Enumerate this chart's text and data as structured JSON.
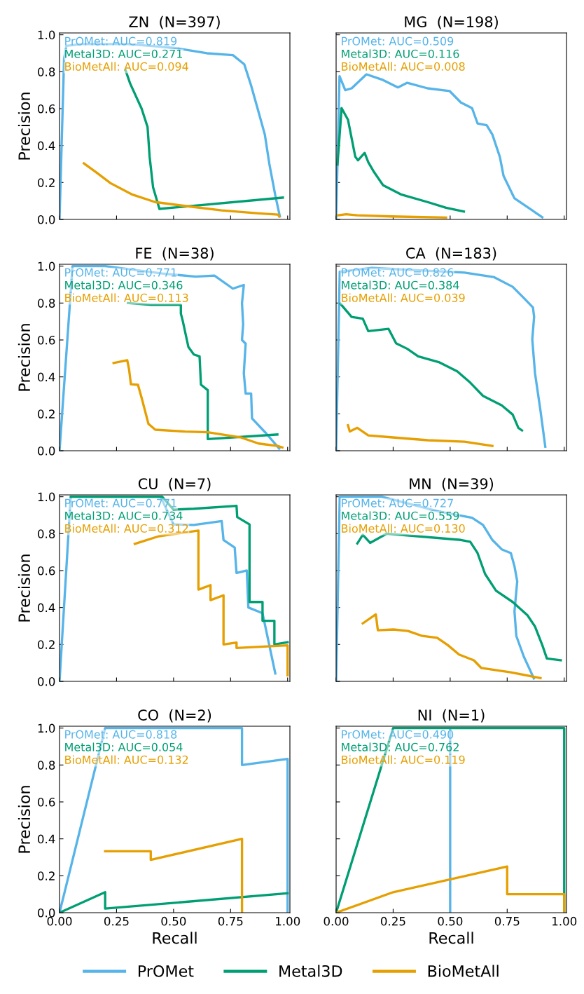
{
  "chart_data": [
    {
      "type": "line",
      "title": "ZN  (N=397)",
      "ylabel": "Precision",
      "xlim": [
        0,
        1.01
      ],
      "ylim": [
        0,
        1.01
      ],
      "xticks": [
        {
          "value": 0,
          "label": null
        },
        {
          "value": 0.25,
          "label": null
        },
        {
          "value": 0.5,
          "label": null
        },
        {
          "value": 0.75,
          "label": null
        },
        {
          "value": 1.0,
          "label": null
        }
      ],
      "yticks": [
        {
          "value": 0,
          "label": "0.0"
        },
        {
          "value": 0.2,
          "label": "0.2"
        },
        {
          "value": 0.4,
          "label": "0.4"
        },
        {
          "value": 0.6,
          "label": "0.6"
        },
        {
          "value": 0.8,
          "label": "0.8"
        },
        {
          "value": 1.0,
          "label": "1.0"
        }
      ],
      "tick_labels": "y",
      "grid": false,
      "legend": "bottom",
      "annotations": [
        "PrOMet: AUC=0.819",
        "Metal3D: AUC=0.271",
        "BioMetAll: AUC=0.094"
      ],
      "series": [
        {
          "name": "PrOMet",
          "color": "#56b4e9",
          "x": [
            0,
            0.02,
            0.03,
            0.1,
            0.3,
            0.5,
            0.646,
            0.76,
            0.81,
            0.84,
            0.873,
            0.9,
            0.92,
            0.946,
            0.966
          ],
          "values": [
            0,
            0.87,
            0.94,
            0.95,
            0.95,
            0.93,
            0.9,
            0.89,
            0.84,
            0.725,
            0.58,
            0.46,
            0.3,
            0.13,
            0.016
          ]
        },
        {
          "name": "Metal3D",
          "color": "#009e73",
          "x": [
            0.289,
            0.31,
            0.36,
            0.386,
            0.395,
            0.41,
            0.438,
            0.979
          ],
          "values": [
            0.81,
            0.735,
            0.6,
            0.5,
            0.34,
            0.175,
            0.057,
            0.118
          ]
        },
        {
          "name": "BioMetAll",
          "color": "#e69f00",
          "x": [
            0.107,
            0.159,
            0.224,
            0.32,
            0.419,
            0.549,
            0.711,
            0.873,
            0.958,
            0.963
          ],
          "values": [
            0.303,
            0.257,
            0.196,
            0.134,
            0.094,
            0.073,
            0.049,
            0.033,
            0.026,
            0.016
          ]
        }
      ]
    },
    {
      "type": "line",
      "title": "MG  (N=198)",
      "xlim": [
        0,
        1.01
      ],
      "ylim": [
        0,
        1.01
      ],
      "xticks": [
        {
          "value": 0,
          "label": null
        },
        {
          "value": 0.25,
          "label": null
        },
        {
          "value": 0.5,
          "label": null
        },
        {
          "value": 0.75,
          "label": null
        },
        {
          "value": 1.0,
          "label": null
        }
      ],
      "yticks": [
        {
          "value": 0,
          "label": null
        },
        {
          "value": 0.2,
          "label": null
        },
        {
          "value": 0.4,
          "label": null
        },
        {
          "value": 0.6,
          "label": null
        },
        {
          "value": 0.8,
          "label": null
        },
        {
          "value": 1.0,
          "label": null
        }
      ],
      "tick_labels": false,
      "grid": false,
      "annotations": [
        "PrOMet: AUC=0.509",
        "Metal3D: AUC=0.116",
        "BioMetAll: AUC=0.008"
      ],
      "series": [
        {
          "name": "PrOMet",
          "color": "#56b4e9",
          "x": [
            0,
            0.015,
            0.04,
            0.068,
            0.133,
            0.206,
            0.271,
            0.312,
            0.401,
            0.498,
            0.547,
            0.596,
            0.62,
            0.66,
            0.685,
            0.718,
            0.734,
            0.782,
            0.904
          ],
          "values": [
            0,
            0.776,
            0.7,
            0.71,
            0.786,
            0.755,
            0.715,
            0.74,
            0.71,
            0.695,
            0.633,
            0.603,
            0.52,
            0.51,
            0.46,
            0.338,
            0.236,
            0.114,
            0.012
          ]
        },
        {
          "name": "Metal3D",
          "color": "#009e73",
          "x": [
            0.006,
            0.024,
            0.052,
            0.068,
            0.084,
            0.096,
            0.125,
            0.141,
            0.166,
            0.206,
            0.287,
            0.401,
            0.482,
            0.56
          ],
          "values": [
            0.297,
            0.603,
            0.54,
            0.44,
            0.34,
            0.32,
            0.36,
            0.31,
            0.257,
            0.185,
            0.134,
            0.094,
            0.063,
            0.043
          ]
        },
        {
          "name": "BioMetAll",
          "color": "#e69f00",
          "x": [
            0.008,
            0.044,
            0.093,
            0.239,
            0.482
          ],
          "values": [
            0.022,
            0.028,
            0.022,
            0.016,
            0.01
          ]
        }
      ]
    },
    {
      "type": "line",
      "title": "FE  (N=38)",
      "ylabel": "Precision",
      "xlim": [
        0,
        1.01
      ],
      "ylim": [
        0,
        1.01
      ],
      "xticks": [
        {
          "value": 0,
          "label": null
        },
        {
          "value": 0.25,
          "label": null
        },
        {
          "value": 0.5,
          "label": null
        },
        {
          "value": 0.75,
          "label": null
        },
        {
          "value": 1.0,
          "label": null
        }
      ],
      "yticks": [
        {
          "value": 0,
          "label": "0.0"
        },
        {
          "value": 0.2,
          "label": "0.2"
        },
        {
          "value": 0.4,
          "label": "0.4"
        },
        {
          "value": 0.6,
          "label": "0.6"
        },
        {
          "value": 0.8,
          "label": "0.8"
        },
        {
          "value": 1.0,
          "label": "1.0"
        }
      ],
      "tick_labels": "y",
      "grid": false,
      "annotations": [
        "PrOMet: AUC=0.771",
        "Metal3D: AUC=0.346",
        "BioMetAll: AUC=0.113"
      ],
      "series": [
        {
          "name": "PrOMet",
          "color": "#56b4e9",
          "x": [
            0,
            0.057,
            0.2,
            0.45,
            0.597,
            0.679,
            0.76,
            0.808,
            0.8,
            0.805,
            0.8,
            0.816,
            0.808,
            0.816,
            0.84,
            0.844,
            0.906,
            0.963
          ],
          "values": [
            0,
            1.0,
            1.0,
            0.96,
            0.943,
            0.949,
            0.878,
            0.898,
            0.8,
            0.684,
            0.6,
            0.58,
            0.42,
            0.31,
            0.31,
            0.175,
            0.094,
            0.012
          ]
        },
        {
          "name": "Metal3D",
          "color": "#009e73",
          "x": [
            0.3,
            0.4,
            0.532,
            0.532,
            0.54,
            0.565,
            0.589,
            0.614,
            0.62,
            0.65,
            0.65,
            0.955
          ],
          "values": [
            0.8,
            0.79,
            0.79,
            0.743,
            0.705,
            0.562,
            0.521,
            0.511,
            0.358,
            0.328,
            0.063,
            0.088
          ]
        },
        {
          "name": "BioMetAll",
          "color": "#e69f00",
          "x": [
            0.237,
            0.297,
            0.305,
            0.313,
            0.344,
            0.362,
            0.39,
            0.42,
            0.549,
            0.65,
            0.792,
            0.873,
            0.955,
            0.977
          ],
          "values": [
            0.475,
            0.49,
            0.44,
            0.36,
            0.357,
            0.277,
            0.145,
            0.114,
            0.104,
            0.1,
            0.073,
            0.039,
            0.026,
            0.018
          ]
        }
      ]
    },
    {
      "type": "line",
      "title": "CA  (N=183)",
      "xlim": [
        0,
        1.01
      ],
      "ylim": [
        0,
        1.01
      ],
      "xticks": [
        {
          "value": 0,
          "label": null
        },
        {
          "value": 0.25,
          "label": null
        },
        {
          "value": 0.5,
          "label": null
        },
        {
          "value": 0.75,
          "label": null
        },
        {
          "value": 1.0,
          "label": null
        }
      ],
      "yticks": [
        {
          "value": 0,
          "label": null
        },
        {
          "value": 0.2,
          "label": null
        },
        {
          "value": 0.4,
          "label": null
        },
        {
          "value": 0.6,
          "label": null
        },
        {
          "value": 0.8,
          "label": null
        },
        {
          "value": 1.0,
          "label": null
        }
      ],
      "tick_labels": false,
      "grid": false,
      "annotations": [
        "PrOMet: AUC=0.826",
        "Metal3D: AUC=0.384",
        "BioMetAll: AUC=0.039"
      ],
      "series": [
        {
          "name": "PrOMet",
          "color": "#56b4e9",
          "x": [
            0,
            0.016,
            0.157,
            0.563,
            0.693,
            0.774,
            0.823,
            0.863,
            0.868,
            0.86,
            0.872,
            0.896,
            0.917
          ],
          "values": [
            0,
            0.97,
            0.99,
            0.965,
            0.94,
            0.888,
            0.827,
            0.776,
            0.725,
            0.603,
            0.42,
            0.216,
            0.022
          ]
        },
        {
          "name": "Metal3D",
          "color": "#009e73",
          "x": [
            0.019,
            0.068,
            0.117,
            0.141,
            0.23,
            0.263,
            0.312,
            0.36,
            0.45,
            0.531,
            0.588,
            0.644,
            0.726,
            0.774,
            0.799,
            0.815
          ],
          "values": [
            0.796,
            0.725,
            0.715,
            0.648,
            0.66,
            0.582,
            0.552,
            0.511,
            0.48,
            0.43,
            0.369,
            0.297,
            0.246,
            0.196,
            0.124,
            0.11
          ]
        },
        {
          "name": "BioMetAll",
          "color": "#e69f00",
          "x": [
            0.052,
            0.06,
            0.093,
            0.141,
            0.239,
            0.401,
            0.563,
            0.685
          ],
          "values": [
            0.138,
            0.104,
            0.124,
            0.083,
            0.073,
            0.057,
            0.049,
            0.026
          ]
        }
      ]
    },
    {
      "type": "line",
      "title": "CU  (N=7)",
      "ylabel": "Precision",
      "xlim": [
        0,
        1.01
      ],
      "ylim": [
        0,
        1.01
      ],
      "xticks": [
        {
          "value": 0,
          "label": null
        },
        {
          "value": 0.25,
          "label": null
        },
        {
          "value": 0.5,
          "label": null
        },
        {
          "value": 0.75,
          "label": null
        },
        {
          "value": 1.0,
          "label": null
        }
      ],
      "yticks": [
        {
          "value": 0,
          "label": "0.0"
        },
        {
          "value": 0.2,
          "label": "0.2"
        },
        {
          "value": 0.4,
          "label": "0.4"
        },
        {
          "value": 0.6,
          "label": "0.6"
        },
        {
          "value": 0.8,
          "label": "0.8"
        },
        {
          "value": 1.0,
          "label": "1.0"
        }
      ],
      "tick_labels": "y",
      "grid": false,
      "annotations": [
        "PrOMet: AUC=0.771",
        "Metal3D: AUC=0.734",
        "BioMetAll: AUC=0.312"
      ],
      "series": [
        {
          "name": "PrOMet",
          "color": "#56b4e9",
          "x": [
            0,
            0.049,
            0.443,
            0.5,
            0.589,
            0.711,
            0.719,
            0.768,
            0.776,
            0.821,
            0.828,
            0.89,
            0.946
          ],
          "values": [
            0,
            1.0,
            1.0,
            0.85,
            0.847,
            0.868,
            0.766,
            0.725,
            0.587,
            0.6,
            0.4,
            0.369,
            0.043
          ]
        },
        {
          "name": "Metal3D",
          "color": "#009e73",
          "x": [
            0.05,
            0.45,
            0.5,
            0.589,
            0.776,
            0.779,
            0.833,
            0.833,
            0.89,
            0.89,
            0.942,
            0.942,
            1.0
          ],
          "values": [
            1.0,
            1.0,
            0.93,
            0.935,
            0.951,
            0.89,
            0.85,
            0.43,
            0.43,
            0.328,
            0.328,
            0.2,
            0.212
          ]
        },
        {
          "name": "BioMetAll",
          "color": "#e69f00",
          "x": [
            0.33,
            0.435,
            0.609,
            0.609,
            0.662,
            0.662,
            0.719,
            0.719,
            0.776,
            0.776,
            1.0,
            1.0
          ],
          "values": [
            0.745,
            0.786,
            0.817,
            0.497,
            0.521,
            0.44,
            0.466,
            0.2,
            0.21,
            0.181,
            0.195,
            0.033
          ]
        }
      ]
    },
    {
      "type": "line",
      "title": "MN  (N=39)",
      "xlim": [
        0,
        1.01
      ],
      "ylim": [
        0,
        1.01
      ],
      "xticks": [
        {
          "value": 0,
          "label": null
        },
        {
          "value": 0.25,
          "label": null
        },
        {
          "value": 0.5,
          "label": null
        },
        {
          "value": 0.75,
          "label": null
        },
        {
          "value": 1.0,
          "label": null
        }
      ],
      "yticks": [
        {
          "value": 0,
          "label": null
        },
        {
          "value": 0.2,
          "label": null
        },
        {
          "value": 0.4,
          "label": null
        },
        {
          "value": 0.6,
          "label": null
        },
        {
          "value": 0.8,
          "label": null
        },
        {
          "value": 1.0,
          "label": null
        }
      ],
      "tick_labels": false,
      "grid": false,
      "annotations": [
        "PrOMet: AUC=0.727",
        "Metal3D: AUC=0.559",
        "BioMetAll: AUC=0.130"
      ],
      "series": [
        {
          "name": "PrOMet",
          "color": "#56b4e9",
          "x": [
            0,
            0.016,
            0.2,
            0.45,
            0.596,
            0.644,
            0.685,
            0.726,
            0.766,
            0.782,
            0.794,
            0.782,
            0.79,
            0.823,
            0.867
          ],
          "values": [
            0,
            1.0,
            1.0,
            0.92,
            0.886,
            0.847,
            0.766,
            0.715,
            0.695,
            0.623,
            0.542,
            0.379,
            0.246,
            0.134,
            0.016
          ]
        },
        {
          "name": "Metal3D",
          "color": "#009e73",
          "x": [
            0.093,
            0.117,
            0.149,
            0.222,
            0.547,
            0.588,
            0.62,
            0.653,
            0.701,
            0.774,
            0.839,
            0.872,
            0.904,
            0.924,
            0.985
          ],
          "values": [
            0.747,
            0.794,
            0.75,
            0.8,
            0.766,
            0.756,
            0.695,
            0.582,
            0.491,
            0.43,
            0.358,
            0.297,
            0.196,
            0.124,
            0.114
          ]
        },
        {
          "name": "BioMetAll",
          "color": "#e69f00",
          "x": [
            0.117,
            0.174,
            0.183,
            0.251,
            0.315,
            0.378,
            0.443,
            0.49,
            0.539,
            0.604,
            0.636,
            0.766,
            0.896
          ],
          "values": [
            0.314,
            0.363,
            0.277,
            0.281,
            0.273,
            0.246,
            0.236,
            0.196,
            0.145,
            0.114,
            0.073,
            0.049,
            0.018
          ]
        }
      ]
    },
    {
      "type": "line",
      "title": "CO  (N=2)",
      "xlabel": "Recall",
      "ylabel": "Precision",
      "xlim": [
        0,
        1.01
      ],
      "ylim": [
        0,
        1.01
      ],
      "xticks": [
        {
          "value": 0,
          "label": "0.00"
        },
        {
          "value": 0.25,
          "label": "0.25"
        },
        {
          "value": 0.5,
          "label": "0.50"
        },
        {
          "value": 0.75,
          "label": "0.75"
        },
        {
          "value": 1.0,
          "label": "1.00"
        }
      ],
      "yticks": [
        {
          "value": 0,
          "label": "0.0"
        },
        {
          "value": 0.2,
          "label": "0.2"
        },
        {
          "value": 0.4,
          "label": "0.4"
        },
        {
          "value": 0.6,
          "label": "0.6"
        },
        {
          "value": 0.8,
          "label": "0.8"
        },
        {
          "value": 1.0,
          "label": "1.0"
        }
      ],
      "grid": false,
      "annotations": [
        "PrOMet: AUC=0.818",
        "Metal3D: AUC=0.054",
        "BioMetAll: AUC=0.132"
      ],
      "series": [
        {
          "name": "PrOMet",
          "color": "#56b4e9",
          "x": [
            0,
            0.2,
            0.8,
            0.8,
            1.0,
            1.0
          ],
          "values": [
            0,
            1.0,
            1.0,
            0.8,
            0.833,
            0
          ]
        },
        {
          "name": "Metal3D",
          "color": "#009e73",
          "x": [
            0,
            0.2,
            0.2,
            1.0
          ],
          "values": [
            0,
            0.111,
            0.022,
            0.105
          ]
        },
        {
          "name": "BioMetAll",
          "color": "#e69f00",
          "x": [
            0.2,
            0.4,
            0.4,
            0.8,
            0.8
          ],
          "values": [
            0.333,
            0.333,
            0.286,
            0.4,
            0
          ]
        }
      ]
    },
    {
      "type": "line",
      "title": "NI  (N=1)",
      "xlabel": "Recall",
      "xlim": [
        0,
        1.01
      ],
      "ylim": [
        0,
        1.01
      ],
      "xticks": [
        {
          "value": 0,
          "label": "0.00"
        },
        {
          "value": 0.25,
          "label": "0.25"
        },
        {
          "value": 0.5,
          "label": "0.50"
        },
        {
          "value": 0.75,
          "label": "0.75"
        },
        {
          "value": 1.0,
          "label": "1.00"
        }
      ],
      "yticks": [
        {
          "value": 0,
          "label": null
        },
        {
          "value": 0.2,
          "label": null
        },
        {
          "value": 0.4,
          "label": null
        },
        {
          "value": 0.6,
          "label": null
        },
        {
          "value": 0.8,
          "label": null
        },
        {
          "value": 1.0,
          "label": null
        }
      ],
      "tick_labels": "x",
      "grid": false,
      "annotations": [
        "PrOMet: AUC=0.490",
        "Metal3D: AUC=0.762",
        "BioMetAll: AUC=0.119"
      ],
      "series": [
        {
          "name": "PrOMet",
          "color": "#56b4e9",
          "x": [
            0.5,
            0.5
          ],
          "values": [
            1.0,
            0
          ]
        },
        {
          "name": "Metal3D",
          "color": "#009e73",
          "x": [
            0,
            0.25,
            1.0,
            1.0
          ],
          "values": [
            0,
            1.0,
            1.0,
            0
          ]
        },
        {
          "name": "BioMetAll",
          "color": "#e69f00",
          "x": [
            0,
            0.25,
            0.75,
            0.75,
            1.0,
            1.0
          ],
          "values": [
            0,
            0.111,
            0.25,
            0.1,
            0.1,
            0
          ]
        }
      ]
    }
  ]
}
